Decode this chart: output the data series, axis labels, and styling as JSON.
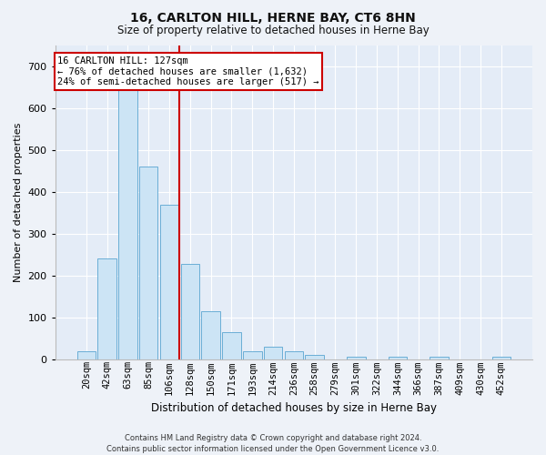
{
  "title": "16, CARLTON HILL, HERNE BAY, CT6 8HN",
  "subtitle": "Size of property relative to detached houses in Herne Bay",
  "xlabel": "Distribution of detached houses by size in Herne Bay",
  "ylabel": "Number of detached properties",
  "footer_line1": "Contains HM Land Registry data © Crown copyright and database right 2024.",
  "footer_line2": "Contains public sector information licensed under the Open Government Licence v3.0.",
  "annotation_line1": "16 CARLTON HILL: 127sqm",
  "annotation_line2": "← 76% of detached houses are smaller (1,632)",
  "annotation_line3": "24% of semi-detached houses are larger (517) →",
  "bar_color": "#cce4f5",
  "bar_edge_color": "#6aaed6",
  "vline_color": "#cc0000",
  "annotation_box_edgecolor": "#cc0000",
  "categories": [
    "20sqm",
    "42sqm",
    "63sqm",
    "85sqm",
    "106sqm",
    "128sqm",
    "150sqm",
    "171sqm",
    "193sqm",
    "214sqm",
    "236sqm",
    "258sqm",
    "279sqm",
    "301sqm",
    "322sqm",
    "344sqm",
    "366sqm",
    "387sqm",
    "409sqm",
    "430sqm",
    "452sqm"
  ],
  "values": [
    20,
    240,
    650,
    460,
    370,
    228,
    115,
    65,
    20,
    30,
    20,
    10,
    0,
    7,
    0,
    7,
    0,
    5,
    0,
    0,
    5
  ],
  "ylim": [
    0,
    750
  ],
  "yticks": [
    0,
    100,
    200,
    300,
    400,
    500,
    600,
    700
  ],
  "vline_x_index": 4.5,
  "fig_bg_color": "#eef2f8",
  "plot_bg_color": "#e4ecf7",
  "grid_color": "#ffffff",
  "title_fontsize": 10,
  "subtitle_fontsize": 8.5,
  "ylabel_fontsize": 8,
  "xlabel_fontsize": 8.5,
  "tick_fontsize": 7.5,
  "ytick_fontsize": 8,
  "footer_fontsize": 6,
  "annot_fontsize": 7.5
}
